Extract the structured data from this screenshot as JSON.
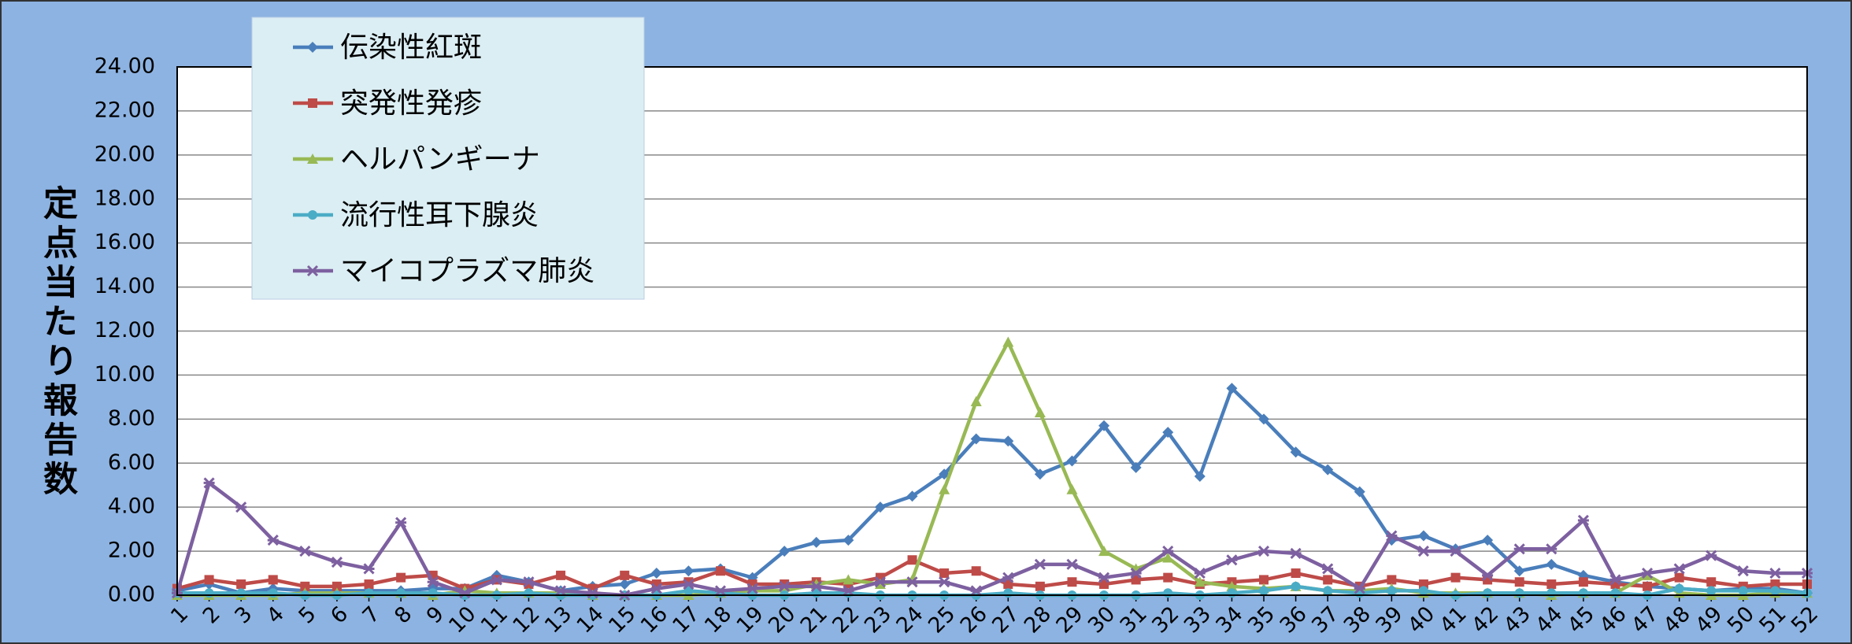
{
  "chart_data": {
    "type": "line",
    "y_label": "定点当たり報告数",
    "categories": [
      "1",
      "2",
      "3",
      "4",
      "5",
      "6",
      "7",
      "8",
      "9",
      "10",
      "11",
      "12",
      "13",
      "14",
      "15",
      "16",
      "17",
      "18",
      "19",
      "20",
      "21",
      "22",
      "23",
      "24",
      "25",
      "26",
      "27",
      "28",
      "29",
      "30",
      "31",
      "32",
      "33",
      "34",
      "35",
      "36",
      "37",
      "38",
      "39",
      "40",
      "41",
      "42",
      "43",
      "44",
      "45",
      "46",
      "47",
      "48",
      "49",
      "50",
      "51",
      "52"
    ],
    "ylim": [
      0,
      24
    ],
    "yticks": [
      {
        "value": 0,
        "label": "0.00"
      },
      {
        "value": 2,
        "label": "2.00"
      },
      {
        "value": 4,
        "label": "4.00"
      },
      {
        "value": 6,
        "label": "6.00"
      },
      {
        "value": 8,
        "label": "8.00"
      },
      {
        "value": 10,
        "label": "10.00"
      },
      {
        "value": 12,
        "label": "12.00"
      },
      {
        "value": 14,
        "label": "14.00"
      },
      {
        "value": 16,
        "label": "16.00"
      },
      {
        "value": 18,
        "label": "18.00"
      },
      {
        "value": 20,
        "label": "20.00"
      },
      {
        "value": 22,
        "label": "22.00"
      },
      {
        "value": 24,
        "label": "24.00"
      }
    ],
    "grid": true,
    "legend": "top-left",
    "series": [
      {
        "name": "伝染性紅斑",
        "color": "#4a7ebb",
        "marker": "diamond",
        "values": [
          0.2,
          0.5,
          0.1,
          0.3,
          0.2,
          0.2,
          0.2,
          0.2,
          0.3,
          0.3,
          0.9,
          0.6,
          0.2,
          0.4,
          0.5,
          1.0,
          1.1,
          1.2,
          0.8,
          2.0,
          2.4,
          2.5,
          4.0,
          4.5,
          5.5,
          7.1,
          7.0,
          5.5,
          6.1,
          7.7,
          5.8,
          7.4,
          5.4,
          9.4,
          8.0,
          6.5,
          5.7,
          4.7,
          2.5,
          2.7,
          2.1,
          2.5,
          1.1,
          1.4,
          0.9,
          0.6,
          0.4,
          0.3,
          0.2,
          0.3,
          0.3,
          0.1
        ]
      },
      {
        "name": "突発性発疹",
        "color": "#be4b48",
        "marker": "square",
        "values": [
          0.3,
          0.7,
          0.5,
          0.7,
          0.4,
          0.4,
          0.5,
          0.8,
          0.9,
          0.3,
          0.7,
          0.5,
          0.9,
          0.3,
          0.9,
          0.5,
          0.6,
          1.1,
          0.5,
          0.5,
          0.6,
          0.5,
          0.8,
          1.6,
          1.0,
          1.1,
          0.5,
          0.4,
          0.6,
          0.5,
          0.7,
          0.8,
          0.5,
          0.6,
          0.7,
          1.0,
          0.7,
          0.4,
          0.7,
          0.5,
          0.8,
          0.7,
          0.6,
          0.5,
          0.6,
          0.5,
          0.4,
          0.8,
          0.6,
          0.4,
          0.5,
          0.5
        ]
      },
      {
        "name": "ヘルパンギーナ",
        "color": "#98b954",
        "marker": "triangle",
        "values": [
          0,
          0,
          0,
          0,
          0.1,
          0.1,
          0.1,
          0.1,
          0,
          0.2,
          0.1,
          0.1,
          0.1,
          0,
          0,
          0,
          0,
          0.1,
          0.2,
          0.2,
          0.5,
          0.7,
          0.5,
          0.7,
          4.8,
          8.8,
          11.5,
          8.3,
          4.8,
          2.0,
          1.2,
          1.7,
          0.6,
          0.4,
          0.3,
          0.4,
          0.2,
          0.2,
          0.3,
          0.1,
          0.1,
          0.1,
          0.1,
          0,
          0.1,
          0.1,
          0.9,
          0.1,
          0,
          0,
          0.1,
          0.1
        ]
      },
      {
        "name": "流行性耳下腺炎",
        "color": "#4bacc6",
        "marker": "circle",
        "values": [
          0.1,
          0.1,
          0.1,
          0.1,
          0,
          0,
          0.1,
          0.1,
          0.1,
          0,
          0,
          0.1,
          0,
          0,
          0,
          0,
          0.2,
          0.1,
          0,
          0,
          0.1,
          0.1,
          0,
          0,
          0,
          0,
          0.1,
          0,
          0,
          0,
          0,
          0.1,
          0,
          0.1,
          0.2,
          0.4,
          0.2,
          0.1,
          0.2,
          0.2,
          0,
          0.1,
          0.1,
          0.1,
          0.1,
          0.1,
          0,
          0.3,
          0.2,
          0.2,
          0.2,
          0.1
        ]
      },
      {
        "name": "マイコプラズマ肺炎",
        "color": "#7d60a0",
        "marker": "cross",
        "values": [
          0.1,
          5.1,
          4.0,
          2.5,
          2.0,
          1.5,
          1.2,
          3.3,
          0.6,
          0.1,
          0.7,
          0.6,
          0.2,
          0.1,
          0,
          0.3,
          0.5,
          0.2,
          0.3,
          0.4,
          0.4,
          0.2,
          0.6,
          0.6,
          0.6,
          0.2,
          0.8,
          1.4,
          1.4,
          0.8,
          1.0,
          2.0,
          1.0,
          1.6,
          2.0,
          1.9,
          1.2,
          0.3,
          2.7,
          2.0,
          2.0,
          0.9,
          2.1,
          2.1,
          3.4,
          0.7,
          1.0,
          1.2,
          1.8,
          1.1,
          1.0,
          1.0
        ]
      }
    ]
  }
}
